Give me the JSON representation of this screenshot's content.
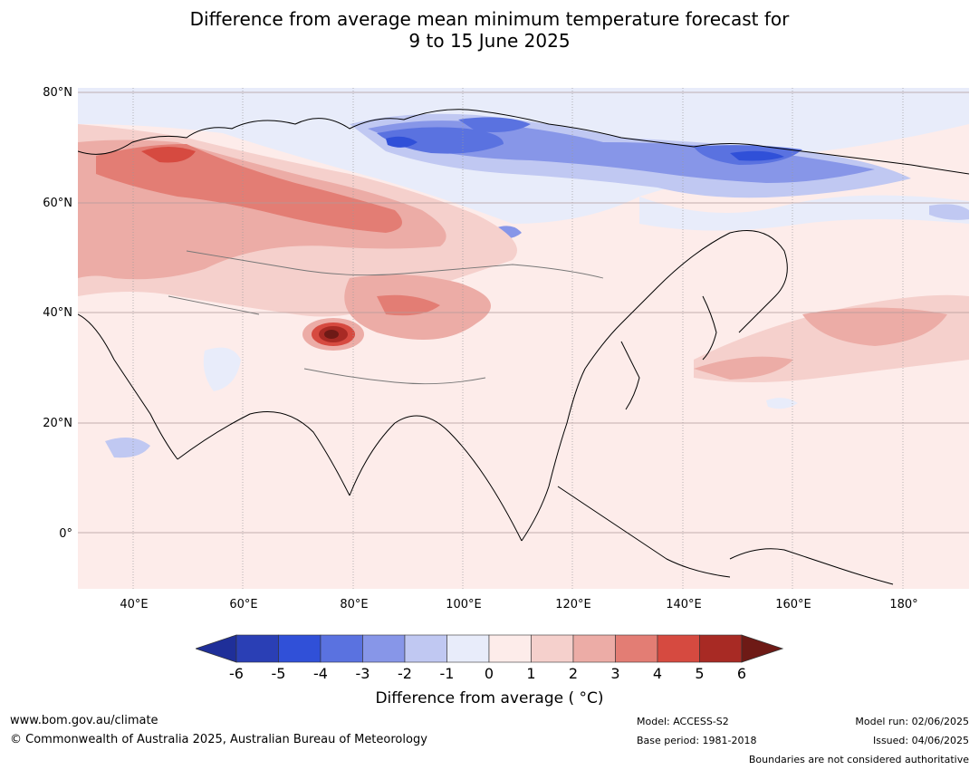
{
  "title": {
    "line1": "Difference from average mean minimum temperature forecast for",
    "line2": "9 to 15 June 2025"
  },
  "axes": {
    "lat_labels": [
      "80°N",
      "60°N",
      "40°N",
      "20°N",
      "0°"
    ],
    "lon_labels": [
      "40°E",
      "60°E",
      "80°E",
      "100°E",
      "120°E",
      "140°E",
      "160°E",
      "180°"
    ]
  },
  "colorbar": {
    "ticks": [
      "-6",
      "-5",
      "-4",
      "-3",
      "-2",
      "-1",
      "0",
      "1",
      "2",
      "3",
      "4",
      "5",
      "6"
    ],
    "colors": [
      "#1f2f99",
      "#2a3fb5",
      "#3050d8",
      "#5a72e0",
      "#8796e8",
      "#c0c8f2",
      "#e8ecfa",
      "#fdecea",
      "#f5d0cc",
      "#ecaca6",
      "#e37d74",
      "#d64a40",
      "#a82a24",
      "#6e1a16"
    ],
    "label": "Difference from average ( °C)"
  },
  "footer": {
    "website": "www.bom.gov.au/climate",
    "copyright": "© Commonwealth of Australia 2025, Australian Bureau of Meteorology",
    "model": "Model: ACCESS-S2",
    "base_period": "Base period: 1981-2018",
    "model_run": "Model run: 02/06/2025",
    "issued": "Issued: 04/06/2025",
    "disclaimer": "Boundaries are not considered authoritative"
  },
  "map": {
    "region": "Asia",
    "lon_range": [
      30,
      190
    ],
    "lat_range": [
      -10,
      80
    ]
  }
}
